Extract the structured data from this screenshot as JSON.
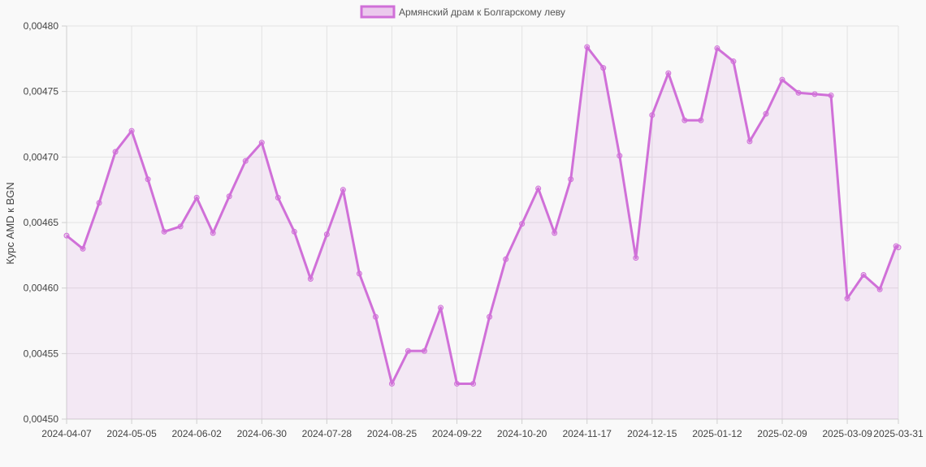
{
  "chart_data": {
    "type": "line",
    "title": "",
    "xlabel": "",
    "ylabel": "Курс AMD к BGN",
    "ylim": [
      0.0045,
      0.0048
    ],
    "yticks": [
      "0,00450",
      "0,00455",
      "0,00460",
      "0,00465",
      "0,00470",
      "0,00475",
      "0,00480"
    ],
    "xtick_labels": [
      "2024-04-07",
      "2024-05-05",
      "2024-06-02",
      "2024-06-30",
      "2024-07-28",
      "2024-08-25",
      "2024-09-22",
      "2024-10-20",
      "2024-11-17",
      "2024-12-15",
      "2025-01-12",
      "2025-02-09",
      "2025-03-09",
      "2025-03-31"
    ],
    "grid": true,
    "legend_position": "top-center",
    "series": [
      {
        "name": "Армянский драм к Болгарскому леву",
        "color": "#d070d8",
        "fill": "rgba(208,112,216,0.12)",
        "x": [
          "2024-04-07",
          "2024-04-14",
          "2024-04-21",
          "2024-04-28",
          "2024-05-05",
          "2024-05-12",
          "2024-05-19",
          "2024-05-26",
          "2024-06-02",
          "2024-06-09",
          "2024-06-16",
          "2024-06-23",
          "2024-06-30",
          "2024-07-07",
          "2024-07-14",
          "2024-07-21",
          "2024-07-28",
          "2024-08-04",
          "2024-08-11",
          "2024-08-18",
          "2024-08-25",
          "2024-09-01",
          "2024-09-08",
          "2024-09-15",
          "2024-09-22",
          "2024-09-29",
          "2024-10-06",
          "2024-10-13",
          "2024-10-20",
          "2024-10-27",
          "2024-11-03",
          "2024-11-10",
          "2024-11-17",
          "2024-11-24",
          "2024-12-01",
          "2024-12-08",
          "2024-12-15",
          "2024-12-22",
          "2024-12-29",
          "2025-01-05",
          "2025-01-12",
          "2025-01-19",
          "2025-01-26",
          "2025-02-02",
          "2025-02-09",
          "2025-02-16",
          "2025-02-23",
          "2025-03-02",
          "2025-03-09",
          "2025-03-16",
          "2025-03-23",
          "2025-03-30",
          "2025-03-31"
        ],
        "values": [
          0.00464,
          0.00463,
          0.004665,
          0.004704,
          0.00472,
          0.004683,
          0.004643,
          0.004647,
          0.004669,
          0.004642,
          0.00467,
          0.004697,
          0.004711,
          0.004669,
          0.004643,
          0.004607,
          0.004641,
          0.004675,
          0.004611,
          0.004578,
          0.004527,
          0.004552,
          0.004552,
          0.004585,
          0.004527,
          0.004527,
          0.004578,
          0.004622,
          0.004649,
          0.004676,
          0.004642,
          0.004683,
          0.004784,
          0.004768,
          0.004701,
          0.004623,
          0.004732,
          0.004764,
          0.004728,
          0.004728,
          0.004783,
          0.004773,
          0.004712,
          0.004733,
          0.004759,
          0.004749,
          0.004748,
          0.004747,
          0.004592,
          0.00461,
          0.004599,
          0.004632,
          0.004631
        ]
      }
    ]
  }
}
